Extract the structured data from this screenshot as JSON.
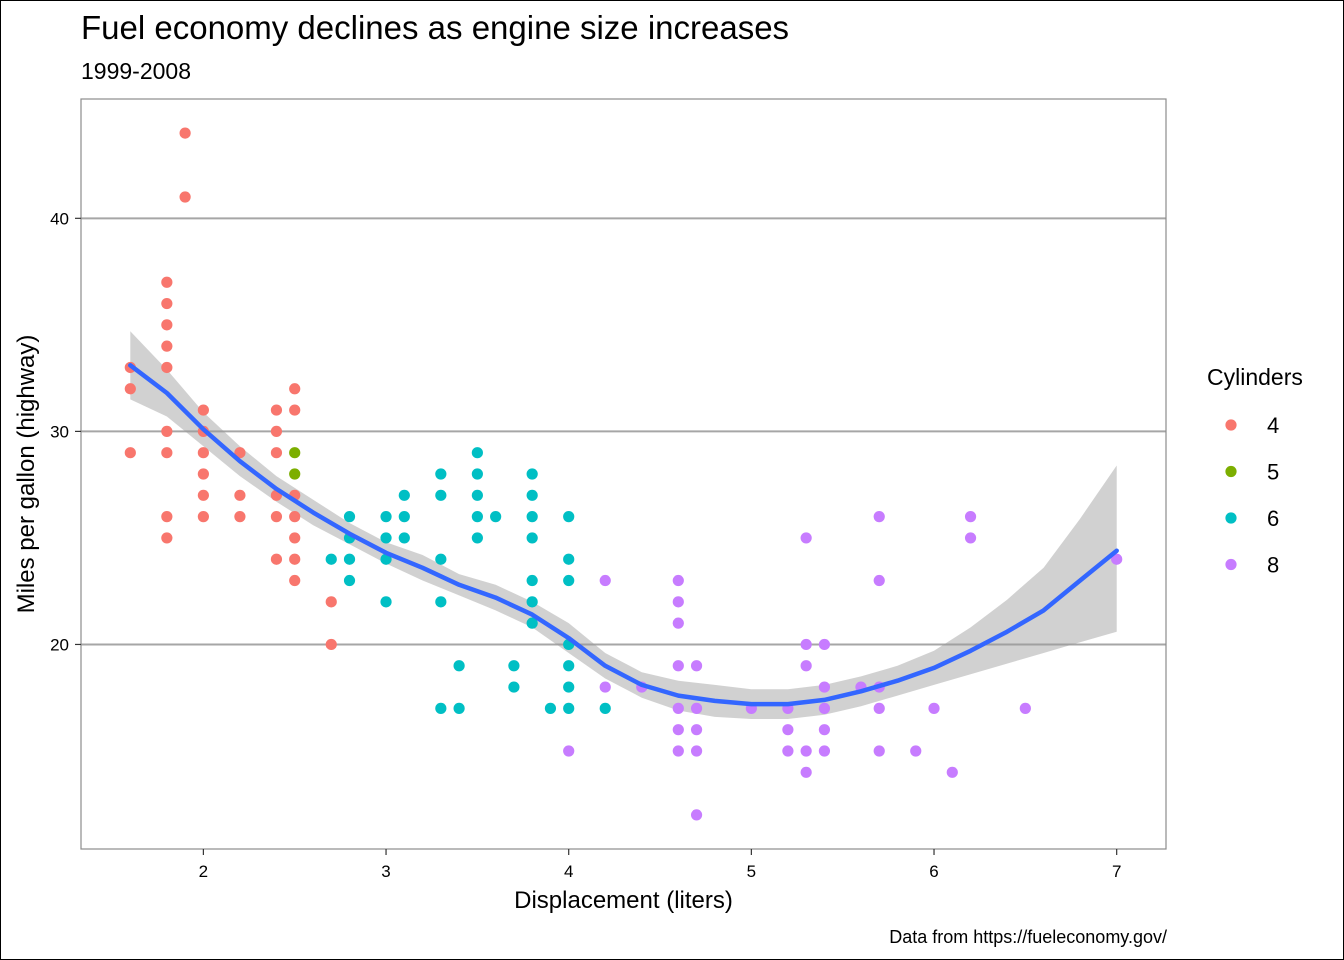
{
  "chart_data": {
    "type": "scatter",
    "title": "Fuel economy declines as engine size increases",
    "subtitle": "1999-2008",
    "xlabel": "Displacement (liters)",
    "ylabel": "Miles per gallon (highway)",
    "caption": "Data from https://fueleconomy.gov/",
    "xlim": [
      1.33,
      7.27
    ],
    "ylim": [
      10.4,
      45.6
    ],
    "x_ticks": [
      2,
      3,
      4,
      5,
      6,
      7
    ],
    "y_ticks": [
      20,
      30,
      40
    ],
    "grid": "horizontal major lines",
    "legend": {
      "title": "Cylinders",
      "position": "right",
      "entries": [
        {
          "label": "4",
          "color": "#F8766D"
        },
        {
          "label": "5",
          "color": "#7CAE00"
        },
        {
          "label": "6",
          "color": "#00BFC4"
        },
        {
          "label": "8",
          "color": "#C77CFF"
        }
      ]
    },
    "series": [
      {
        "name": "4",
        "color": "#F8766D",
        "points": [
          [
            1.6,
            33
          ],
          [
            1.6,
            32
          ],
          [
            1.6,
            29
          ],
          [
            1.8,
            37
          ],
          [
            1.8,
            36
          ],
          [
            1.8,
            35
          ],
          [
            1.8,
            34
          ],
          [
            1.8,
            33
          ],
          [
            1.8,
            30
          ],
          [
            1.8,
            29
          ],
          [
            1.8,
            26
          ],
          [
            1.8,
            25
          ],
          [
            1.9,
            44
          ],
          [
            1.9,
            41
          ],
          [
            2.0,
            31
          ],
          [
            2.0,
            30
          ],
          [
            2.0,
            29
          ],
          [
            2.0,
            28
          ],
          [
            2.0,
            27
          ],
          [
            2.0,
            26
          ],
          [
            2.2,
            29
          ],
          [
            2.2,
            27
          ],
          [
            2.2,
            26
          ],
          [
            2.4,
            31
          ],
          [
            2.4,
            30
          ],
          [
            2.4,
            29
          ],
          [
            2.4,
            27
          ],
          [
            2.4,
            26
          ],
          [
            2.4,
            24
          ],
          [
            2.5,
            32
          ],
          [
            2.5,
            31
          ],
          [
            2.5,
            27
          ],
          [
            2.5,
            26
          ],
          [
            2.5,
            25
          ],
          [
            2.5,
            24
          ],
          [
            2.5,
            23
          ],
          [
            2.7,
            22
          ],
          [
            2.7,
            20
          ]
        ]
      },
      {
        "name": "5",
        "color": "#7CAE00",
        "points": [
          [
            2.5,
            29
          ],
          [
            2.5,
            28
          ]
        ]
      },
      {
        "name": "6",
        "color": "#00BFC4",
        "points": [
          [
            2.7,
            24
          ],
          [
            2.8,
            26
          ],
          [
            2.8,
            25
          ],
          [
            2.8,
            24
          ],
          [
            2.8,
            23
          ],
          [
            3.0,
            26
          ],
          [
            3.0,
            25
          ],
          [
            3.0,
            24
          ],
          [
            3.0,
            22
          ],
          [
            3.1,
            27
          ],
          [
            3.1,
            26
          ],
          [
            3.1,
            25
          ],
          [
            3.3,
            28
          ],
          [
            3.3,
            27
          ],
          [
            3.3,
            24
          ],
          [
            3.3,
            22
          ],
          [
            3.3,
            17
          ],
          [
            3.4,
            19
          ],
          [
            3.4,
            17
          ],
          [
            3.5,
            29
          ],
          [
            3.5,
            28
          ],
          [
            3.5,
            27
          ],
          [
            3.5,
            26
          ],
          [
            3.5,
            25
          ],
          [
            3.6,
            26
          ],
          [
            3.7,
            19
          ],
          [
            3.7,
            18
          ],
          [
            3.8,
            28
          ],
          [
            3.8,
            27
          ],
          [
            3.8,
            26
          ],
          [
            3.8,
            25
          ],
          [
            3.8,
            23
          ],
          [
            3.8,
            22
          ],
          [
            3.8,
            21
          ],
          [
            3.9,
            17
          ],
          [
            4.0,
            26
          ],
          [
            4.0,
            24
          ],
          [
            4.0,
            23
          ],
          [
            4.0,
            20
          ],
          [
            4.0,
            19
          ],
          [
            4.0,
            18
          ],
          [
            4.0,
            17
          ],
          [
            4.2,
            17
          ]
        ]
      },
      {
        "name": "8",
        "color": "#C77CFF",
        "points": [
          [
            4.0,
            15
          ],
          [
            4.2,
            23
          ],
          [
            4.2,
            18
          ],
          [
            4.4,
            18
          ],
          [
            4.6,
            23
          ],
          [
            4.6,
            22
          ],
          [
            4.6,
            21
          ],
          [
            4.6,
            19
          ],
          [
            4.6,
            17
          ],
          [
            4.6,
            16
          ],
          [
            4.6,
            15
          ],
          [
            4.7,
            19
          ],
          [
            4.7,
            17
          ],
          [
            4.7,
            16
          ],
          [
            4.7,
            15
          ],
          [
            4.7,
            12
          ],
          [
            5.0,
            17
          ],
          [
            5.2,
            17
          ],
          [
            5.2,
            16
          ],
          [
            5.2,
            15
          ],
          [
            5.3,
            25
          ],
          [
            5.3,
            20
          ],
          [
            5.3,
            19
          ],
          [
            5.3,
            15
          ],
          [
            5.3,
            14
          ],
          [
            5.4,
            20
          ],
          [
            5.4,
            18
          ],
          [
            5.4,
            17
          ],
          [
            5.4,
            16
          ],
          [
            5.4,
            15
          ],
          [
            5.6,
            18
          ],
          [
            5.7,
            26
          ],
          [
            5.7,
            23
          ],
          [
            5.7,
            18
          ],
          [
            5.7,
            17
          ],
          [
            5.7,
            15
          ],
          [
            5.9,
            15
          ],
          [
            6.0,
            17
          ],
          [
            6.1,
            14
          ],
          [
            6.2,
            26
          ],
          [
            6.2,
            25
          ],
          [
            6.5,
            17
          ],
          [
            7.0,
            24
          ]
        ]
      }
    ],
    "smooth": {
      "method": "loess",
      "color": "#3366FF",
      "fit": [
        [
          1.6,
          33.1
        ],
        [
          1.8,
          31.8
        ],
        [
          2.0,
          30.1
        ],
        [
          2.2,
          28.6
        ],
        [
          2.4,
          27.3
        ],
        [
          2.6,
          26.2
        ],
        [
          2.8,
          25.2
        ],
        [
          3.0,
          24.3
        ],
        [
          3.2,
          23.6
        ],
        [
          3.4,
          22.8
        ],
        [
          3.6,
          22.2
        ],
        [
          3.8,
          21.4
        ],
        [
          4.0,
          20.3
        ],
        [
          4.2,
          19.0
        ],
        [
          4.4,
          18.1
        ],
        [
          4.6,
          17.6
        ],
        [
          4.8,
          17.35
        ],
        [
          5.0,
          17.2
        ],
        [
          5.2,
          17.2
        ],
        [
          5.4,
          17.4
        ],
        [
          5.6,
          17.8
        ],
        [
          5.8,
          18.3
        ],
        [
          6.0,
          18.9
        ],
        [
          6.2,
          19.7
        ],
        [
          6.4,
          20.6
        ],
        [
          6.6,
          21.6
        ],
        [
          6.8,
          23.0
        ],
        [
          7.0,
          24.4
        ]
      ],
      "lower": [
        [
          1.6,
          31.5
        ],
        [
          1.8,
          30.7
        ],
        [
          2.0,
          29.3
        ],
        [
          2.2,
          27.9
        ],
        [
          2.4,
          26.7
        ],
        [
          2.6,
          25.6
        ],
        [
          2.8,
          24.7
        ],
        [
          3.0,
          23.8
        ],
        [
          3.2,
          23.0
        ],
        [
          3.4,
          22.3
        ],
        [
          3.6,
          21.6
        ],
        [
          3.8,
          20.8
        ],
        [
          4.0,
          19.6
        ],
        [
          4.2,
          18.4
        ],
        [
          4.4,
          17.5
        ],
        [
          4.6,
          16.9
        ],
        [
          4.8,
          16.6
        ],
        [
          5.0,
          16.5
        ],
        [
          5.2,
          16.5
        ],
        [
          5.4,
          16.7
        ],
        [
          5.6,
          17.1
        ],
        [
          5.8,
          17.6
        ],
        [
          6.0,
          18.1
        ],
        [
          6.2,
          18.6
        ],
        [
          6.4,
          19.1
        ],
        [
          6.6,
          19.6
        ],
        [
          6.8,
          20.1
        ],
        [
          7.0,
          20.6
        ]
      ],
      "upper": [
        [
          1.6,
          34.7
        ],
        [
          1.8,
          32.9
        ],
        [
          2.0,
          30.9
        ],
        [
          2.2,
          29.3
        ],
        [
          2.4,
          27.9
        ],
        [
          2.6,
          26.8
        ],
        [
          2.8,
          25.7
        ],
        [
          3.0,
          24.8
        ],
        [
          3.2,
          24.2
        ],
        [
          3.4,
          23.3
        ],
        [
          3.6,
          22.8
        ],
        [
          3.8,
          22.0
        ],
        [
          4.0,
          21.0
        ],
        [
          4.2,
          19.6
        ],
        [
          4.4,
          18.7
        ],
        [
          4.6,
          18.3
        ],
        [
          4.8,
          18.1
        ],
        [
          5.0,
          17.9
        ],
        [
          5.2,
          17.9
        ],
        [
          5.4,
          18.1
        ],
        [
          5.6,
          18.5
        ],
        [
          5.8,
          19.0
        ],
        [
          6.0,
          19.7
        ],
        [
          6.2,
          20.8
        ],
        [
          6.4,
          22.1
        ],
        [
          6.6,
          23.6
        ],
        [
          6.8,
          25.9
        ],
        [
          7.0,
          28.4
        ]
      ]
    }
  }
}
